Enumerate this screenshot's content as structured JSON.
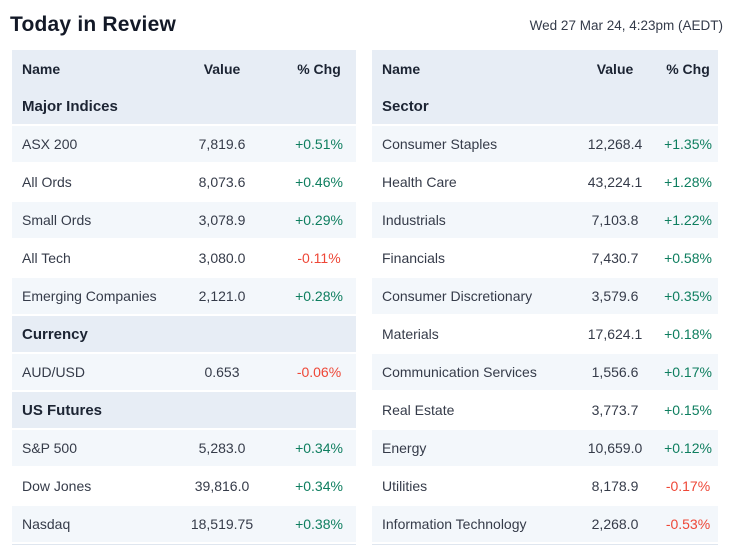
{
  "page": {
    "title": "Today in Review",
    "timestamp": "Wed 27 Mar 24, 4:23pm (AEDT)"
  },
  "columns": {
    "name": "Name",
    "value": "Value",
    "chg": "% Chg"
  },
  "colors": {
    "positive": "#0e7e5f",
    "negative": "#ee4737",
    "header_bg": "#e7edf5",
    "row_alt_bg": "#f3f7fb"
  },
  "left_table": {
    "sections": [
      {
        "title": "Major Indices",
        "rows": [
          {
            "name": "ASX 200",
            "value": "7,819.6",
            "chg": "+0.51%"
          },
          {
            "name": "All Ords",
            "value": "8,073.6",
            "chg": "+0.46%"
          },
          {
            "name": "Small Ords",
            "value": "3,078.9",
            "chg": "+0.29%"
          },
          {
            "name": "All Tech",
            "value": "3,080.0",
            "chg": "-0.11%"
          },
          {
            "name": "Emerging Companies",
            "value": "2,121.0",
            "chg": "+0.28%"
          }
        ]
      },
      {
        "title": "Currency",
        "rows": [
          {
            "name": "AUD/USD",
            "value": "0.653",
            "chg": "-0.06%"
          }
        ]
      },
      {
        "title": "US Futures",
        "rows": [
          {
            "name": "S&P 500",
            "value": "5,283.0",
            "chg": "+0.34%"
          },
          {
            "name": "Dow Jones",
            "value": "39,816.0",
            "chg": "+0.34%"
          },
          {
            "name": "Nasdaq",
            "value": "18,519.75",
            "chg": "+0.38%"
          }
        ]
      }
    ]
  },
  "right_table": {
    "sections": [
      {
        "title": "Sector",
        "rows": [
          {
            "name": "Consumer Staples",
            "value": "12,268.4",
            "chg": "+1.35%"
          },
          {
            "name": "Health Care",
            "value": "43,224.1",
            "chg": "+1.28%"
          },
          {
            "name": "Industrials",
            "value": "7,103.8",
            "chg": "+1.22%"
          },
          {
            "name": "Financials",
            "value": "7,430.7",
            "chg": "+0.58%"
          },
          {
            "name": "Consumer Discretionary",
            "value": "3,579.6",
            "chg": "+0.35%"
          },
          {
            "name": "Materials",
            "value": "17,624.1",
            "chg": "+0.18%"
          },
          {
            "name": "Communication Services",
            "value": "1,556.6",
            "chg": "+0.17%"
          },
          {
            "name": "Real Estate",
            "value": "3,773.7",
            "chg": "+0.15%"
          },
          {
            "name": "Energy",
            "value": "10,659.0",
            "chg": "+0.12%"
          },
          {
            "name": "Utilities",
            "value": "8,178.9",
            "chg": "-0.17%"
          },
          {
            "name": "Information Technology",
            "value": "2,268.0",
            "chg": "-0.53%"
          }
        ]
      }
    ]
  }
}
